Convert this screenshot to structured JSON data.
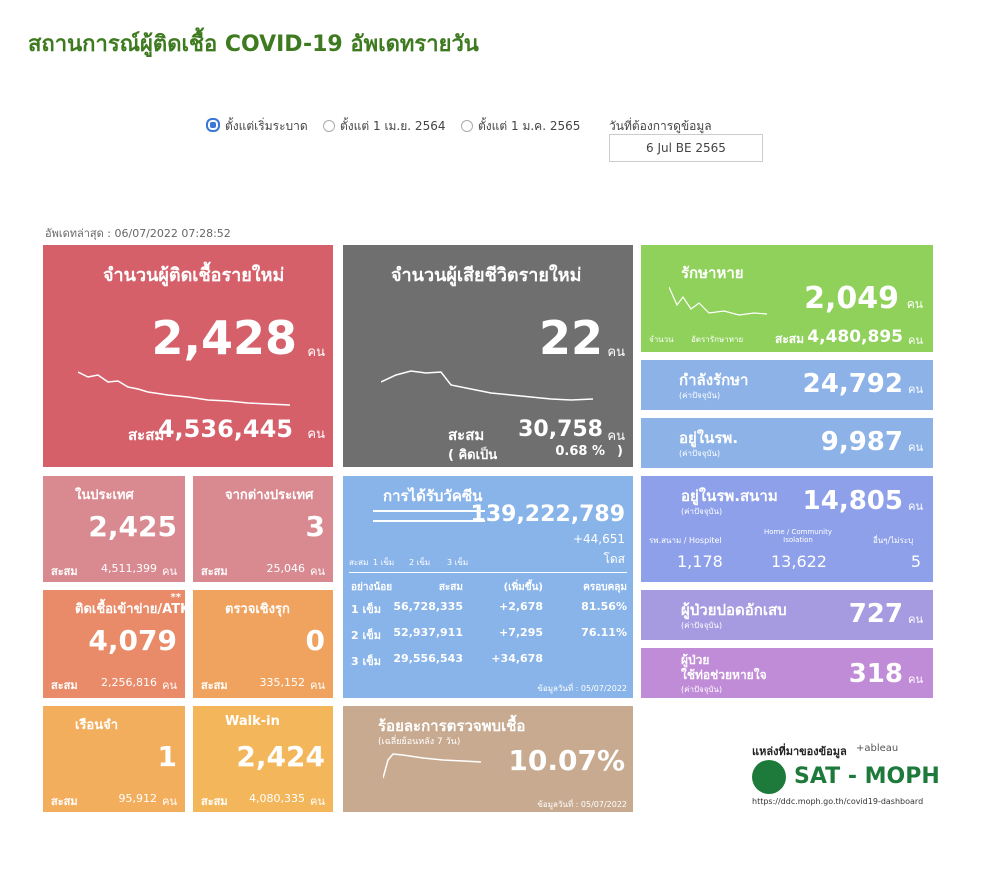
{
  "header": {
    "title": "สถานการณ์ผู้ติดเชื้อ COVID-19 อัพเดทรายวัน"
  },
  "filters": {
    "options": [
      "ตั้งแต่เริ่มระบาด",
      "ตั้งแต่ 1 เม.ย. 2564",
      "ตั้งแต่ 1 ม.ค. 2565"
    ],
    "date_label": "วันที่ต้องการดูข้อมูล",
    "date_value": "6 Jul BE 2565"
  },
  "updated": "อัพเดทล่าสุด : 06/07/2022 07:28:52",
  "new_cases": {
    "title": "จำนวนผู้ติดเชื้อรายใหม่",
    "value": "2,428",
    "unit": "คน",
    "total_label": "สะสม",
    "total": "4,536,445",
    "total_unit": "คน"
  },
  "new_deaths": {
    "title": "จำนวนผู้เสียชีวิตรายใหม่",
    "value": "22",
    "unit": "คน",
    "total_label": "สะสม",
    "total": "30,758",
    "total_unit": "คน",
    "pct_open": "( คิดเป็น",
    "pct": "0.68 %",
    "pct_close": ")"
  },
  "recovered": {
    "title": "รักษาหาย",
    "value": "2,049",
    "unit": "คน",
    "legend": [
      "จำนวน",
      "อัตรารักษาหาย"
    ],
    "total_label": "สะสม",
    "total": "4,480,895",
    "total_unit": "คน"
  },
  "treating": {
    "title": "กำลังรักษา",
    "note": "(ค่าปัจจุบัน)",
    "value": "24,792",
    "unit": "คน"
  },
  "in_hospital": {
    "title": "อยู่ในรพ.",
    "note": "(ค่าปัจจุบัน)",
    "value": "9,987",
    "unit": "คน"
  },
  "field_hospital": {
    "title": "อยู่ในรพ.สนาม",
    "note": "(ค่าปัจจุบัน)",
    "value": "14,805",
    "unit": "คน",
    "parts": [
      {
        "label": "รพ.สนาม / Hospitel",
        "value": "1,178"
      },
      {
        "label": "Home / Community Isolation",
        "value": "13,622"
      },
      {
        "label": "อื่นๆ/ไม่ระบุ",
        "value": "5"
      }
    ]
  },
  "pneumonia": {
    "title": "ผู้ป่วยปอดอักเสบ",
    "note": "(ค่าปัจจุบัน)",
    "value": "727",
    "unit": "คน"
  },
  "ventilator": {
    "title": "ผู้ป่วย",
    "title2": "ใช้ท่อช่วยหายใจ",
    "note": "(ค่าปัจจุบัน)",
    "value": "318",
    "unit": "คน"
  },
  "domestic": {
    "title": "ในประเทศ",
    "value": "2,425",
    "total_label": "สะสม",
    "total": "4,511,399",
    "total_unit": "คน"
  },
  "foreign": {
    "title": "จากต่างประเทศ",
    "value": "3",
    "total_label": "สะสม",
    "total": "25,046",
    "total_unit": "คน"
  },
  "atk": {
    "title": "ติดเชื้อเข้าข่าย/ATK",
    "mark": "**",
    "value": "4,079",
    "total_label": "สะสม",
    "total": "2,256,816",
    "total_unit": "คน"
  },
  "proactive": {
    "title": "ตรวจเชิงรุก",
    "value": "0",
    "total_label": "สะสม",
    "total": "335,152",
    "total_unit": "คน"
  },
  "prison": {
    "title": "เรือนจำ",
    "value": "1",
    "total_label": "สะสม",
    "total": "95,912",
    "total_unit": "คน"
  },
  "walkin": {
    "title": "Walk-in",
    "value": "2,424",
    "total_label": "สะสม",
    "total": "4,080,335",
    "total_unit": "คน"
  },
  "vaccine": {
    "title": "การได้รับวัคซีน",
    "total": "139,222,789",
    "increase": "+44,651",
    "unit": "โดส",
    "legend": [
      "สะสม",
      "1 เข็ม",
      "2 เข็ม",
      "3 เข็ม"
    ],
    "table": {
      "headers": [
        "อย่างน้อย",
        "สะสม",
        "(เพิ่มขึ้น)",
        "ครอบคลุม"
      ],
      "rows": [
        [
          "1 เข็ม",
          "56,728,335",
          "+2,678",
          "81.56%"
        ],
        [
          "2 เข็ม",
          "52,937,911",
          "+7,295",
          "76.11%"
        ],
        [
          "3 เข็ม",
          "29,556,543",
          "+34,678"
        ]
      ]
    },
    "footer": "ข้อมูลวันที่ : 05/07/2022"
  },
  "positivity": {
    "title": "ร้อยละการตรวจพบเชื้อ",
    "note": "(เฉลี่ยย้อนหลัง 7 วัน)",
    "value": "10.07%",
    "footer": "ข้อมูลวันที่ : 05/07/2022"
  },
  "source": {
    "label": "แหล่งที่มาของข้อมูล",
    "tool": "+ableau",
    "org": "SAT - MOPH",
    "url": "https://ddc.moph.go.th/covid19-dashboard"
  }
}
